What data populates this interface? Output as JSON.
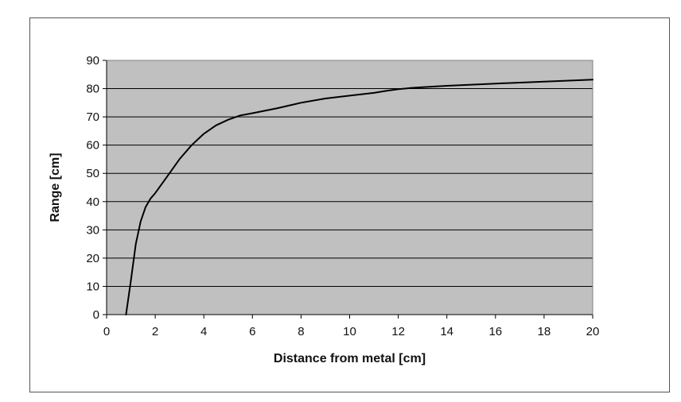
{
  "chart_data": {
    "type": "line",
    "title": "",
    "xlabel": "Distance from metal [cm]",
    "ylabel": "Range [cm]",
    "xlim": [
      0,
      20
    ],
    "ylim": [
      0,
      90
    ],
    "xticks": [
      0,
      2,
      4,
      6,
      8,
      10,
      12,
      14,
      16,
      18,
      20
    ],
    "yticks": [
      0,
      10,
      20,
      30,
      40,
      50,
      60,
      70,
      80,
      90
    ],
    "grid": "horizontal",
    "legend": "none",
    "colors": {
      "plot_background": "#c0c0c0",
      "gridline": "#000000",
      "line": "#000000"
    },
    "series": [
      {
        "x": [
          0.8,
          1.0,
          1.2,
          1.4,
          1.6,
          1.8,
          2.0,
          2.5,
          3.0,
          3.5,
          4.0,
          4.5,
          5.0,
          5.5,
          6.0,
          7.0,
          7.5,
          8.0,
          9.0,
          10.0,
          11.0,
          11.5,
          12.0,
          12.5,
          13.0,
          14.0,
          16.0,
          18.0,
          20.0
        ],
        "y": [
          0,
          12,
          25,
          33,
          38,
          41,
          43,
          49,
          55,
          60,
          64,
          67,
          69,
          70.5,
          71.3,
          73,
          74,
          75,
          76.5,
          77.5,
          78.5,
          79.2,
          79.8,
          80.2,
          80.5,
          81,
          81.8,
          82.5,
          83.2
        ]
      }
    ]
  }
}
